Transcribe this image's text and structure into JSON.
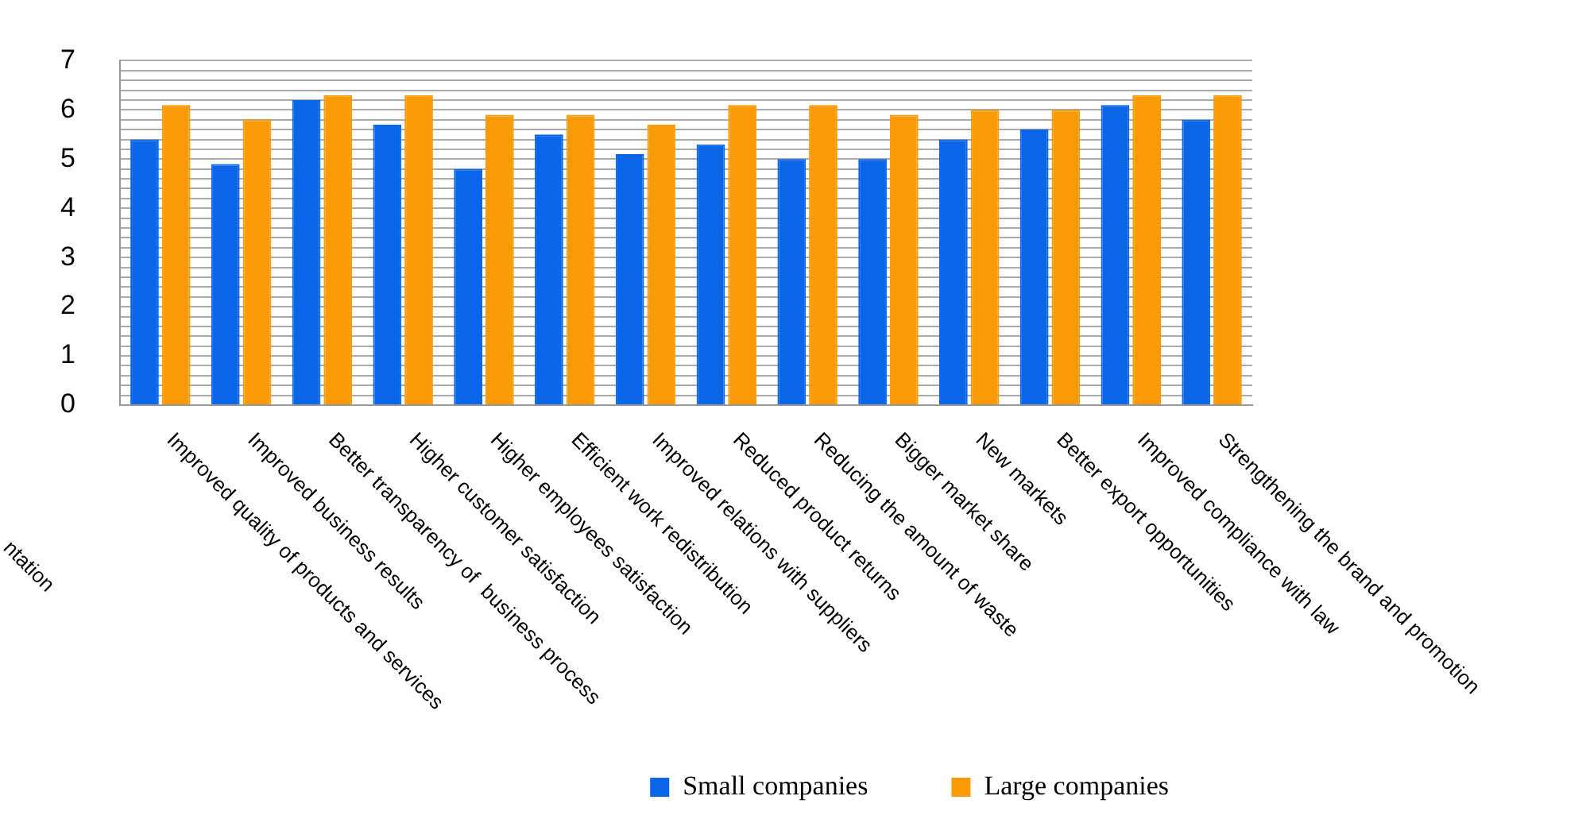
{
  "chart_data": {
    "type": "bar",
    "categories": [
      "Improved quality of products and services",
      "Improved business results",
      "Better transparency of  business process",
      "Higher customer satisfaction",
      "Higher employees satisfaction",
      "Efficient work redistribution",
      "Improved relations with suppliers",
      "Reduced product returns",
      "Reducing the amount of waste",
      "Bigger market share",
      "New markets",
      "Better export opportunities",
      "Improved compliance with law",
      "Strengthening the brand and promotion"
    ],
    "series": [
      {
        "name": "Small companies",
        "color": "#0a66e8",
        "values": [
          5.4,
          4.9,
          6.2,
          5.7,
          4.8,
          5.5,
          5.1,
          5.3,
          5.0,
          5.0,
          5.4,
          5.6,
          6.1,
          5.8
        ]
      },
      {
        "name": "Large companies",
        "color": "#f99a06",
        "values": [
          6.1,
          5.8,
          6.3,
          6.3,
          5.9,
          5.9,
          5.7,
          6.1,
          6.1,
          5.9,
          6.0,
          6.0,
          6.3,
          6.3
        ]
      }
    ],
    "ylim": [
      0,
      7
    ],
    "yticks": [
      0,
      {
        "value": 0.2,
        "label": null
      },
      {
        "value": 0.4,
        "label": null
      },
      {
        "value": 0.6,
        "label": null
      },
      {
        "value": 0.8,
        "label": null
      },
      1,
      {
        "value": 1.2,
        "label": null
      },
      {
        "value": 1.4,
        "label": null
      },
      {
        "value": 1.6,
        "label": null
      },
      {
        "value": 1.8,
        "label": null
      },
      2,
      {
        "value": 2.2,
        "label": null
      },
      {
        "value": 2.4,
        "label": null
      },
      {
        "value": 2.6,
        "label": null
      },
      {
        "value": 2.8,
        "label": null
      },
      3,
      {
        "value": 3.2,
        "label": null
      },
      {
        "value": 3.4,
        "label": null
      },
      {
        "value": 3.6,
        "label": null
      },
      {
        "value": 3.8,
        "label": null
      },
      4,
      {
        "value": 4.2,
        "label": null
      },
      {
        "value": 4.4,
        "label": null
      },
      {
        "value": 4.6,
        "label": null
      },
      {
        "value": 4.8,
        "label": null
      },
      5,
      {
        "value": 5.2,
        "label": null
      },
      {
        "value": 5.4,
        "label": null
      },
      {
        "value": 5.6,
        "label": null
      },
      {
        "value": 5.8,
        "label": null
      },
      6,
      {
        "value": 6.2,
        "label": null
      },
      {
        "value": 6.4,
        "label": null
      },
      {
        "value": 6.6,
        "label": null
      },
      {
        "value": 6.8,
        "label": null
      },
      7
    ],
    "grid": "y",
    "legend": "bottom",
    "annotations": [
      "ntation"
    ]
  }
}
